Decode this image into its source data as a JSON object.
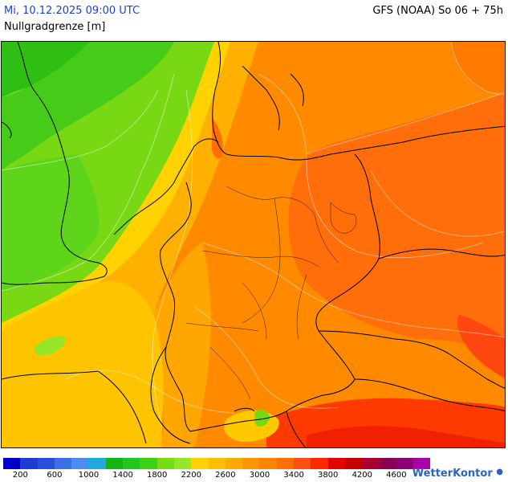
{
  "header": {
    "datetime": "Mi, 10.12.2025 09:00 UTC",
    "parameter": "Nullgradgrenze [m]",
    "model": "GFS (NOAA) So 06 + 75h"
  },
  "legend": {
    "colors": [
      "#0000c8",
      "#1e3cd2",
      "#2850dc",
      "#3c6ee6",
      "#4b8cf0",
      "#1eaadc",
      "#14b414",
      "#1ec81e",
      "#3cd214",
      "#78dc14",
      "#96e628",
      "#ffd200",
      "#ffbe00",
      "#ffaa00",
      "#ff9600",
      "#ff8200",
      "#ff6e00",
      "#ff5014",
      "#ff2800",
      "#e60000",
      "#c80000",
      "#aa0032",
      "#8c0050",
      "#8c0078",
      "#aa00aa"
    ],
    "labels": [
      "200",
      "600",
      "1000",
      "1400",
      "1800",
      "2200",
      "2600",
      "3000",
      "3400",
      "3800",
      "4200",
      "4600"
    ]
  },
  "brand": {
    "name_part1": "Wetter",
    "name_part2": "Kontor"
  }
}
